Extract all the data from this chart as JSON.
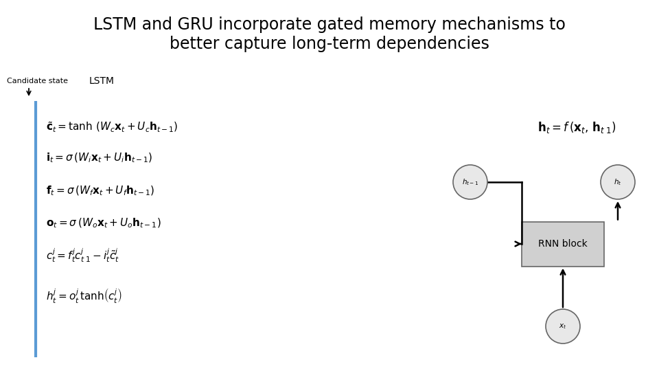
{
  "title_line1": "LSTM and GRU incorporate gated memory mechanisms to",
  "title_line2": "better capture long-term dependencies",
  "title_fontsize": 17,
  "background_color": "#ffffff",
  "candidate_state_label": "Candidate state",
  "lstm_label": "LSTM",
  "equations": [
    "$\\tilde{\\mathbf{c}}_t = \\tanh\\,(W_c\\mathbf{x}_t + U_c\\mathbf{h}_{t-1})$",
    "$\\mathbf{i}_t = \\sigma\\,(W_i\\mathbf{x}_t + U_i\\mathbf{h}_{t-1})$",
    "$\\mathbf{f}_t = \\sigma\\,(W_f\\mathbf{x}_t + U_f\\mathbf{h}_{t-1})$",
    "$\\mathbf{o}_t = \\sigma\\,(W_o\\mathbf{x}_t + U_o\\mathbf{h}_{t-1})$",
    "$c_t^j = f_t^j c_{t\\;1}^j - i_t^j \\tilde{c}_t^j$",
    "$h_t^j = o_t^j\\,\\tanh\\!\\left(c_t^j\\right)$"
  ],
  "rnn_formula": "$\\mathbf{h}_t = f\\,(\\mathbf{x}_t,\\,\\mathbf{h}_{t\\;1})$",
  "sidebar_color": "#5B9BD5",
  "rnn_block_color": "#d0d0d0",
  "rnn_block_edge_color": "#666666",
  "circle_facecolor": "#e8e8e8",
  "circle_edgecolor": "#666666",
  "eq_fontsize": 11,
  "candidate_fontsize": 8,
  "lstm_label_fontsize": 10,
  "rnn_label_fontsize": 10,
  "rnn_formula_fontsize": 12
}
